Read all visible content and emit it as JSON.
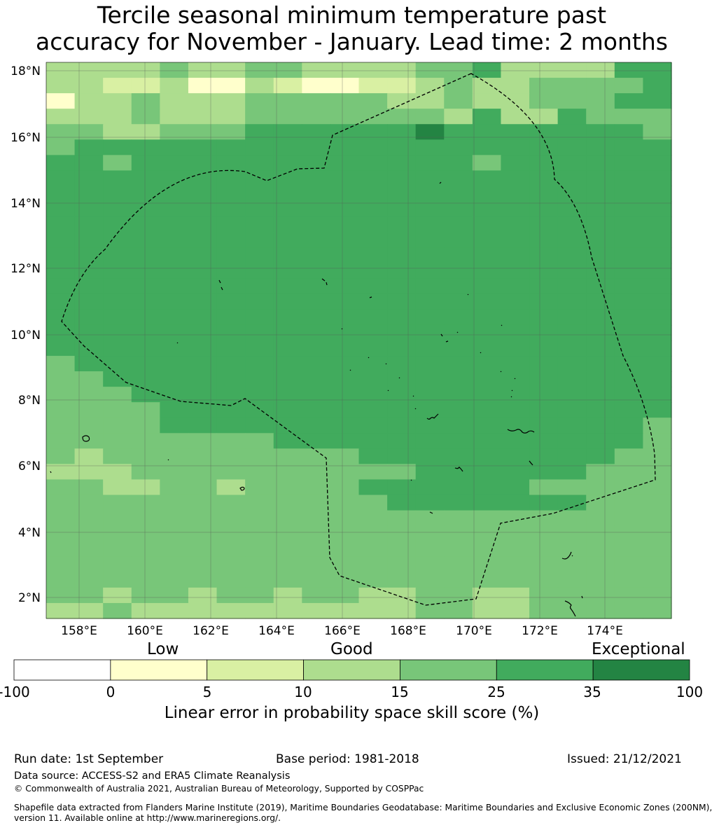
{
  "title": {
    "line1": "Tercile seasonal minimum temperature past",
    "line2": "accuracy for November - January. Lead time: 2 months"
  },
  "map": {
    "lat_ticks": [
      "18°N",
      "16°N",
      "14°N",
      "12°N",
      "10°N",
      "8°N",
      "6°N",
      "4°N",
      "2°N"
    ],
    "lon_ticks": [
      "158°E",
      "160°E",
      "162°E",
      "164°E",
      "166°E",
      "168°E",
      "170°E",
      "172°E",
      "174°E"
    ],
    "skill_rows": [
      "3333433443333445333355",
      "3322311321122343344445",
      "1334333444443343344455",
      "3334333444444435335444",
      "4433444555555655555554",
      "4555555555555555555555",
      "5545555555555554555555",
      "5555555555555555555555",
      "5555555555555555555555",
      "5555555555555555555555",
      "5555555555555555555555",
      "5555555555555555555555",
      "5555555555555555555555",
      "5555555555555555555555",
      "5555555555555555555555",
      "5555555555555555555555",
      "5555555555555555555555",
      "5555555555555555555555",
      "5555555555555555555555",
      "4555555555555555555555",
      "4455555555555555555555",
      "4445555555555555555555",
      "4444555555555555555555",
      "4444555555555555555554",
      "4444444455555555555554",
      "4344444444455555555544",
      "3334444444444555555444",
      "4433443444455555544444",
      "4444444444445555555444",
      "4444444444444444444444",
      "4444444444444444444444",
      "4444444444444444444444",
      "4444444444444444444444",
      "4444444444444444444444",
      "4434434434433443344444",
      "3343333333333443344444"
    ]
  },
  "colorbar": {
    "labels": {
      "low": "Low",
      "good": "Good",
      "exceptional": "Exceptional"
    },
    "colors": [
      "#ffffff",
      "#ffffcc",
      "#d9f0a3",
      "#addd8e",
      "#78c679",
      "#41ab5d",
      "#238443"
    ],
    "ticks": [
      "-100",
      "0",
      "5",
      "10",
      "15",
      "25",
      "35",
      "100"
    ],
    "title": "Linear error in probability space skill score (%)"
  },
  "footer": {
    "run_date": "Run date: 1st September",
    "base_period": "Base period: 1981-2018",
    "issued": "Issued: 21/12/2021",
    "data_source": "Data source: ACCESS-S2 and ERA5 Climate Reanalysis",
    "copyright": "© Commonwealth of Australia 2021, Australian Bureau of Meteorology, Supported by COSPPac",
    "shapefile_line1": "Shapefile data extracted from Flanders Marine Institute (2019), Maritime Boundaries Geodatabase: Maritime Boundaries and Exclusive Economic Zones (200NM),",
    "shapefile_line2": "version 11. Available online at http://www.marineregions.org/."
  }
}
